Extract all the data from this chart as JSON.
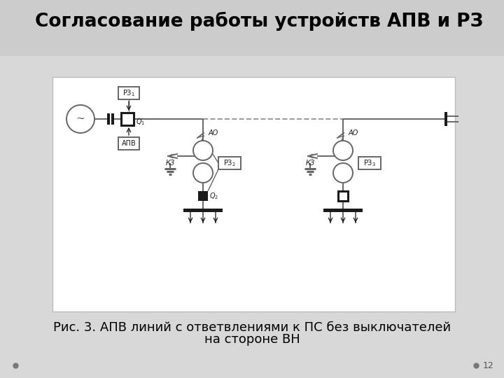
{
  "title": "Согласование работы устройств АПВ и РЗ",
  "caption_line1": "Рис. 3. АПВ линий с ответвлениями к ПС без выключателей",
  "caption_line2": "на стороне ВН",
  "page_number": "12",
  "bg_color": "#d8d8d8",
  "panel_bg": "#f0f0f0",
  "line_color": "#666666",
  "dark_color": "#1a1a1a",
  "title_fontsize": 19,
  "caption_fontsize": 13
}
